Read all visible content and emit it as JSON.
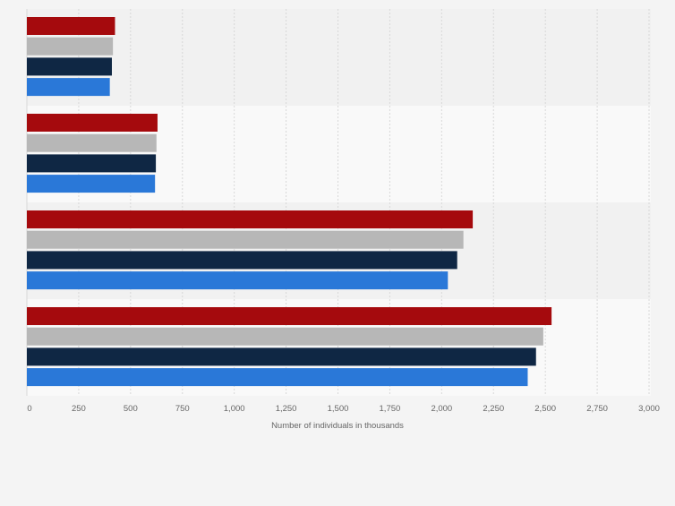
{
  "colors": {
    "background": "#f4f4f4",
    "band_light": "#f9f9f9",
    "band_dark": "#f1f1f1",
    "gridline": "#d8d8d8",
    "axis_text": "#666666",
    "series": [
      "#a50a0d",
      "#b7b7b7",
      "#0f2744",
      "#2a78d8"
    ]
  },
  "chart_data": {
    "type": "bar",
    "orientation": "horizontal",
    "title": "",
    "xlabel": "Number of individuals in thousands",
    "ylabel": "",
    "xlim": [
      0,
      3000
    ],
    "x_ticks": [
      "0",
      "250",
      "500",
      "750",
      "1,000",
      "1,250",
      "1,500",
      "1,750",
      "2,000",
      "2,250",
      "2,500",
      "2,750",
      "3,000"
    ],
    "grid": true,
    "legend": "none",
    "categories": [
      "",
      "",
      "",
      ""
    ],
    "series": [
      {
        "values": [
          425,
          630,
          2150,
          2530
        ]
      },
      {
        "values": [
          415,
          625,
          2105,
          2490
        ]
      },
      {
        "values": [
          410,
          622,
          2075,
          2455
        ]
      },
      {
        "values": [
          400,
          618,
          2030,
          2415
        ]
      }
    ]
  }
}
